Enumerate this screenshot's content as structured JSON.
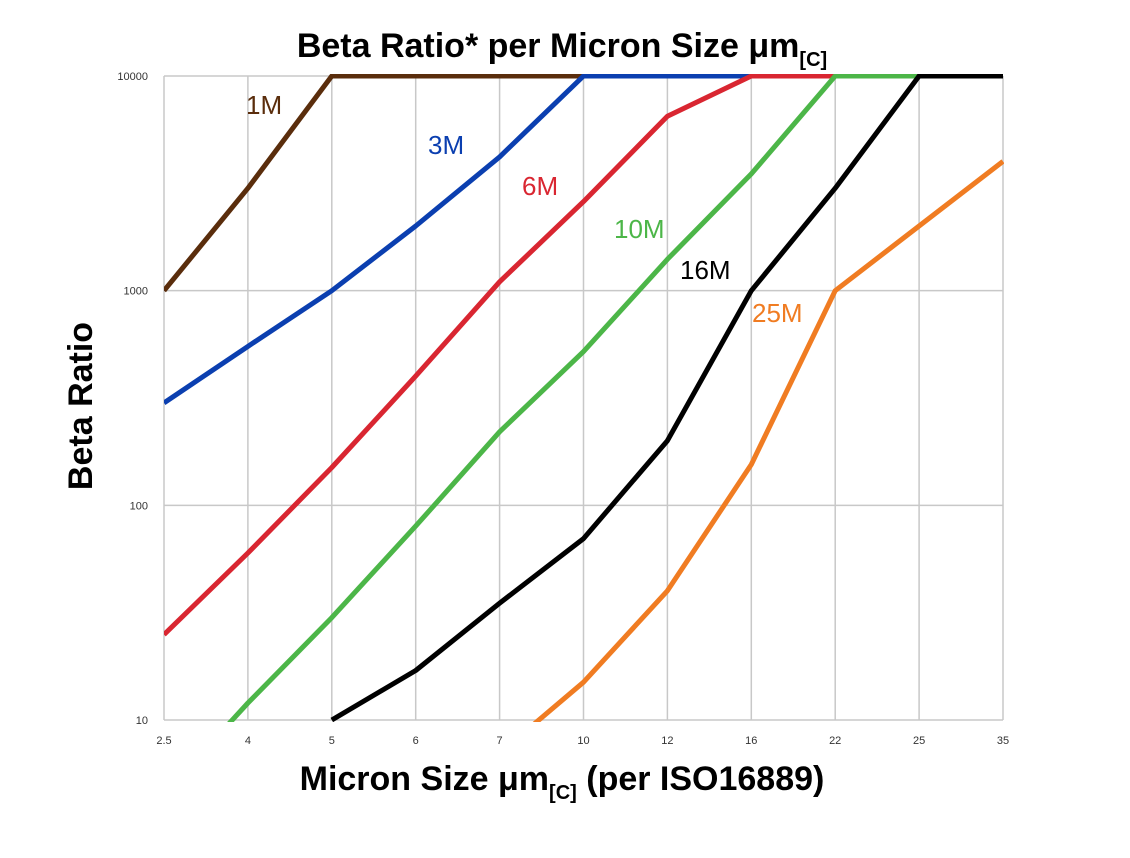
{
  "chart_data": {
    "type": "line",
    "title": "Beta Ratio* per Micron Size μm",
    "title_subscript": "[C]",
    "xlabel": "Micron Size μm",
    "xlabel_subscript": "[C]",
    "xlabel_suffix": " (per ISO16889)",
    "ylabel": "Beta Ratio",
    "x_scale": "categorical",
    "y_scale": "log",
    "ylim": [
      10,
      10000
    ],
    "y_ticks": [
      10,
      100,
      1000,
      10000
    ],
    "grid": true,
    "legend": "inline labels",
    "categories": [
      "2.5",
      "4",
      "5",
      "6",
      "7",
      "10",
      "12",
      "16",
      "22",
      "25",
      "35"
    ],
    "series": [
      {
        "name": "1M",
        "color": "#5a2d0c",
        "values": [
          1000,
          3000,
          10000,
          10000,
          10000,
          10000,
          10000,
          10000,
          10000,
          10000,
          10000
        ]
      },
      {
        "name": "3M",
        "color": "#0b3fb0",
        "values": [
          300,
          550,
          1000,
          2000,
          4200,
          10000,
          10000,
          10000,
          10000,
          10000,
          10000
        ]
      },
      {
        "name": "6M",
        "color": "#d92631",
        "values": [
          25,
          60,
          150,
          400,
          1100,
          2600,
          6500,
          10000,
          10000,
          10000,
          10000
        ]
      },
      {
        "name": "10M",
        "color": "#4cb648",
        "values": [
          4.5,
          12,
          30,
          80,
          220,
          520,
          1400,
          3500,
          10000,
          10000,
          10000
        ]
      },
      {
        "name": "16M",
        "color": "#000000",
        "values": [
          null,
          null,
          10,
          17,
          35,
          70,
          200,
          1000,
          3000,
          10000,
          10000
        ]
      },
      {
        "name": "25M",
        "color": "#f07c22",
        "values": [
          null,
          null,
          null,
          null,
          7,
          15,
          40,
          155,
          1000,
          2000,
          4000
        ]
      }
    ]
  }
}
